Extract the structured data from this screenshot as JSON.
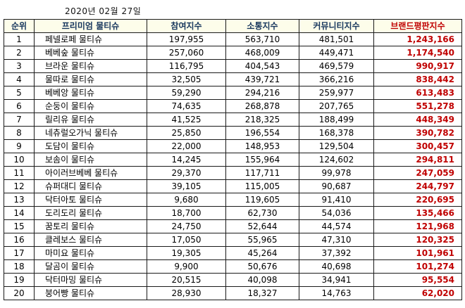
{
  "date": "2020년 02월 27일",
  "colors": {
    "header_bg": "#fdfdea",
    "header_text": "#17365d",
    "reputation_text": "#c00000",
    "border": "#1a1a1a"
  },
  "chart_data": {
    "type": "table",
    "title": "프리미엄 물티슈 브랜드평판지수 (2020년 02월 27일)",
    "columns": [
      "순위",
      "프리미엄 물티슈",
      "참여지수",
      "소통지수",
      "커뮤니티지수",
      "브랜드평판지수"
    ],
    "rows": [
      {
        "rank": "1",
        "brand": "페넬로페 물티슈",
        "participation": "197,955",
        "communication": "563,710",
        "community": "481,501",
        "reputation": "1,243,166"
      },
      {
        "rank": "2",
        "brand": "베베숲 물티슈",
        "participation": "257,060",
        "communication": "468,009",
        "community": "449,471",
        "reputation": "1,174,540"
      },
      {
        "rank": "3",
        "brand": "브라운 물티슈",
        "participation": "116,795",
        "communication": "404,543",
        "community": "469,579",
        "reputation": "990,917"
      },
      {
        "rank": "4",
        "brand": "물따로 물티슈",
        "participation": "32,505",
        "communication": "439,721",
        "community": "366,216",
        "reputation": "838,442"
      },
      {
        "rank": "5",
        "brand": "베베앙 물티슈",
        "participation": "59,290",
        "communication": "294,216",
        "community": "259,977",
        "reputation": "613,483"
      },
      {
        "rank": "6",
        "brand": "순둥이 물티슈",
        "participation": "74,635",
        "communication": "268,878",
        "community": "207,765",
        "reputation": "551,278"
      },
      {
        "rank": "7",
        "brand": "릴리유 물티슈",
        "participation": "41,525",
        "communication": "218,325",
        "community": "188,499",
        "reputation": "448,349"
      },
      {
        "rank": "8",
        "brand": "네츄럴오가닉 물티슈",
        "participation": "25,850",
        "communication": "196,554",
        "community": "168,378",
        "reputation": "390,782"
      },
      {
        "rank": "9",
        "brand": "도담이 물티슈",
        "participation": "22,000",
        "communication": "148,953",
        "community": "129,504",
        "reputation": "300,457"
      },
      {
        "rank": "10",
        "brand": "보솜이 물티슈",
        "participation": "14,245",
        "communication": "155,964",
        "community": "124,602",
        "reputation": "294,811"
      },
      {
        "rank": "11",
        "brand": "아이러브베베 물티슈",
        "participation": "29,370",
        "communication": "117,711",
        "community": "99,978",
        "reputation": "247,059"
      },
      {
        "rank": "12",
        "brand": "슈퍼대디 물티슈",
        "participation": "39,105",
        "communication": "115,005",
        "community": "90,687",
        "reputation": "244,797"
      },
      {
        "rank": "13",
        "brand": "닥터아토 물티슈",
        "participation": "9,680",
        "communication": "119,605",
        "community": "91,410",
        "reputation": "220,695"
      },
      {
        "rank": "14",
        "brand": "도리도리 물티슈",
        "participation": "18,700",
        "communication": "62,730",
        "community": "54,036",
        "reputation": "135,466"
      },
      {
        "rank": "15",
        "brand": "꿈토리 물티슈",
        "participation": "24,750",
        "communication": "52,644",
        "community": "44,574",
        "reputation": "121,968"
      },
      {
        "rank": "16",
        "brand": "클레보스 물티슈",
        "participation": "17,050",
        "communication": "55,965",
        "community": "47,310",
        "reputation": "120,325"
      },
      {
        "rank": "17",
        "brand": "마미요 물티슈",
        "participation": "19,305",
        "communication": "45,264",
        "community": "37,392",
        "reputation": "101,961"
      },
      {
        "rank": "18",
        "brand": "달곰이 물티슈",
        "participation": "9,900",
        "communication": "50,676",
        "community": "40,698",
        "reputation": "101,274"
      },
      {
        "rank": "19",
        "brand": "닥터마밍 물티슈",
        "participation": "20,515",
        "communication": "40,098",
        "community": "34,941",
        "reputation": "95,554"
      },
      {
        "rank": "20",
        "brand": "붕어빵 물티슈",
        "participation": "28,930",
        "communication": "18,327",
        "community": "14,763",
        "reputation": "62,020"
      }
    ]
  }
}
